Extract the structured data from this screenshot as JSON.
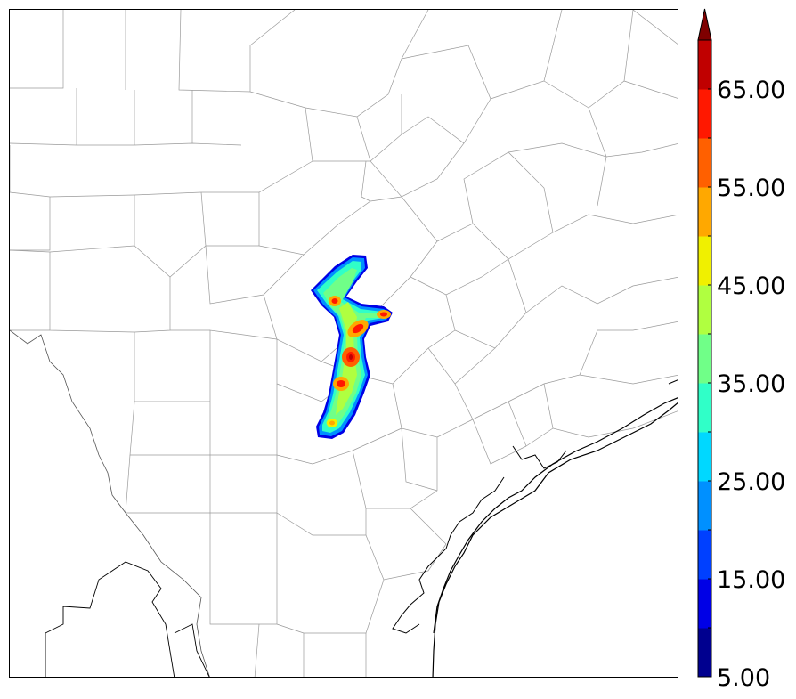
{
  "colorbar": {
    "min": 5,
    "max": 70,
    "step": 5,
    "extend": "max",
    "extend_color": "#7f0000",
    "colors": [
      "#00008f",
      "#0000e6",
      "#0040ff",
      "#0090ff",
      "#00d8ff",
      "#30ffc8",
      "#70ff88",
      "#b0ff40",
      "#f0f000",
      "#ffa800",
      "#ff6000",
      "#ff1800",
      "#c00000"
    ],
    "tick_labels": [
      {
        "value": 5,
        "label": "5.00"
      },
      {
        "value": 15,
        "label": "15.00"
      },
      {
        "value": 25,
        "label": "25.00"
      },
      {
        "value": 35,
        "label": "35.00"
      },
      {
        "value": 45,
        "label": "45.00"
      },
      {
        "value": 55,
        "label": "55.00"
      },
      {
        "value": 65,
        "label": "65.00"
      }
    ]
  },
  "map": {
    "background": "#ffffff",
    "county_line_color": "#9a9a9a",
    "coast_line_color": "#000000"
  }
}
